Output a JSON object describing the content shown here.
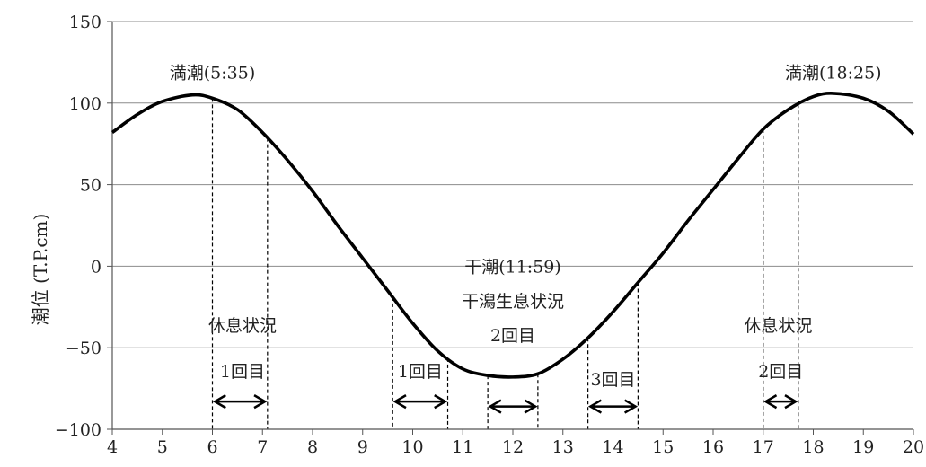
{
  "chart_data": {
    "type": "line",
    "title": "",
    "xlabel": "",
    "ylabel": "潮位 (T.P.cm)",
    "xlim": [
      4,
      20
    ],
    "ylim": [
      -100,
      150
    ],
    "xticks": [
      4,
      5,
      6,
      7,
      8,
      9,
      10,
      11,
      12,
      13,
      14,
      15,
      16,
      17,
      18,
      19,
      20
    ],
    "yticks": [
      150,
      100,
      50,
      0,
      -50,
      -100
    ],
    "ytick_labels": [
      "150",
      "100",
      "50",
      "0",
      "−50",
      "−100"
    ],
    "grid": "horizontal",
    "series": [
      {
        "x": [
          4,
          4.5,
          5,
          5.6,
          6,
          6.5,
          7,
          7.5,
          8,
          8.5,
          9,
          9.5,
          10,
          10.5,
          11,
          11.5,
          12,
          12.5,
          13,
          13.5,
          14,
          14.5,
          15,
          15.5,
          16,
          16.5,
          17,
          17.5,
          18,
          18.4,
          19,
          19.5,
          20
        ],
        "values": [
          82,
          93,
          101,
          105,
          103,
          96,
          82,
          65,
          46,
          25,
          5,
          -15,
          -35,
          -52,
          -63,
          -67,
          -68,
          -66,
          -57,
          -44,
          -28,
          -10,
          8,
          28,
          47,
          66,
          84,
          96,
          104,
          106,
          103,
          95,
          81
        ]
      }
    ],
    "vertical_markers": [
      6.0,
      7.1,
      9.6,
      10.7,
      11.5,
      12.5,
      13.5,
      14.5,
      17.0,
      17.7
    ],
    "annotations": [
      {
        "text": "満潮(5:35)",
        "x": 6.0,
        "y": 115
      },
      {
        "text": "満潮(18:25)",
        "x": 18.4,
        "y": 115
      },
      {
        "text": "干潮(11:59)",
        "x": 12.0,
        "y": -4
      },
      {
        "text": "干潟生息状況",
        "x": 12.0,
        "y": -25
      },
      {
        "text": "2回目",
        "x": 12.0,
        "y": -46
      },
      {
        "text": "休息状況",
        "x": 6.6,
        "y": -40
      },
      {
        "text": "休息状況",
        "x": 17.3,
        "y": -40
      },
      {
        "text": "1回目",
        "x": 6.6,
        "y": -68
      },
      {
        "text": "1回目",
        "x": 10.15,
        "y": -68
      },
      {
        "text": "3回目",
        "x": 14.0,
        "y": -73
      },
      {
        "text": "2回目",
        "x": 17.35,
        "y": -68
      }
    ],
    "arrows": [
      {
        "from": 6.05,
        "to": 7.05,
        "y": -83
      },
      {
        "from": 9.65,
        "to": 10.65,
        "y": -83
      },
      {
        "from": 11.55,
        "to": 12.45,
        "y": -86
      },
      {
        "from": 13.55,
        "to": 14.45,
        "y": -86
      },
      {
        "from": 17.05,
        "to": 17.65,
        "y": -83
      }
    ]
  }
}
